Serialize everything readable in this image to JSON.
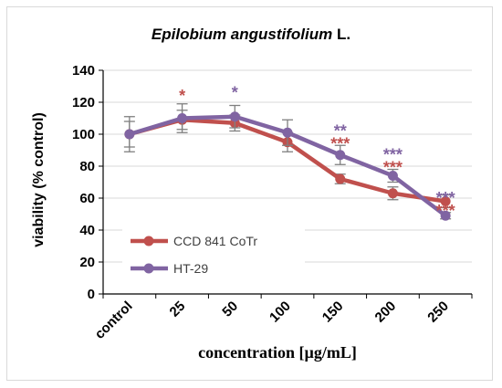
{
  "chart_data": {
    "type": "line",
    "title_italic": "Epilobium angustifolium",
    "title_rest": " L.",
    "xlabel": "concentration [µg/mL]",
    "ylabel": "viability (% control)",
    "categories": [
      "control",
      "25",
      "50",
      "100",
      "150",
      "200",
      "250"
    ],
    "ylim": [
      0,
      140
    ],
    "yticks": [
      0,
      20,
      40,
      60,
      80,
      100,
      120,
      140
    ],
    "grid": "horizontal",
    "legend_position": "lower-left",
    "series": [
      {
        "name": "CCD 841 CoTr",
        "color": "#c0504d",
        "values": [
          100,
          109,
          107,
          95,
          72,
          63,
          58
        ],
        "errors": [
          8,
          6,
          5,
          6,
          3,
          4,
          4
        ],
        "significance": [
          "",
          "*",
          "",
          "",
          "***",
          "***",
          "***"
        ]
      },
      {
        "name": "HT-29",
        "color": "#8064a2",
        "values": [
          100,
          110,
          111,
          101,
          87,
          74,
          49
        ],
        "errors": [
          11,
          9,
          7,
          8,
          6,
          4,
          2
        ],
        "significance": [
          "",
          "",
          "*",
          "",
          "**",
          "***",
          "***"
        ]
      }
    ]
  }
}
